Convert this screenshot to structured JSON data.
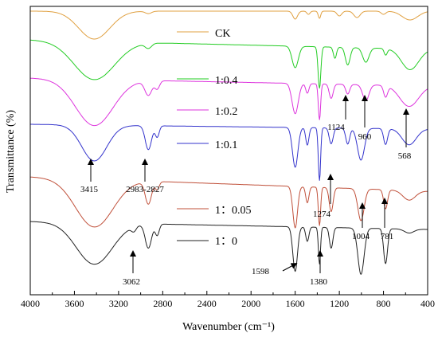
{
  "chart_data": {
    "type": "line",
    "xlabel": "Wavenumber (cm⁻¹)",
    "ylabel": "Transmittance (%)",
    "xlim": [
      4000,
      400
    ],
    "x_reversed": true,
    "x_ticks": [
      4000,
      3600,
      3200,
      2800,
      2400,
      2000,
      1600,
      1200,
      800,
      400
    ],
    "y_ticks": "none",
    "grid": false,
    "legend": "inline-labels",
    "series": [
      {
        "name": "CK",
        "color": "#e0a040"
      },
      {
        "name": "1:0.4",
        "color": "#22cc22"
      },
      {
        "name": "1:0.2",
        "color": "#dd33dd"
      },
      {
        "name": "1:0.1",
        "color": "#3333cc"
      },
      {
        "name": "1：0.05",
        "color": "#c0503a"
      },
      {
        "name": "1：0",
        "color": "#222222"
      }
    ],
    "annotations": [
      {
        "text": "3415",
        "x": 3415
      },
      {
        "text": "2983-2827",
        "x": 2927
      },
      {
        "text": "3062",
        "x": 3062
      },
      {
        "text": "1598",
        "x": 1598
      },
      {
        "text": "1380",
        "x": 1380
      },
      {
        "text": "1274",
        "x": 1274
      },
      {
        "text": "1124",
        "x": 1124
      },
      {
        "text": "960",
        "x": 960
      },
      {
        "text": "1004",
        "x": 1004
      },
      {
        "text": "781",
        "x": 781
      },
      {
        "text": "568",
        "x": 568
      }
    ]
  }
}
